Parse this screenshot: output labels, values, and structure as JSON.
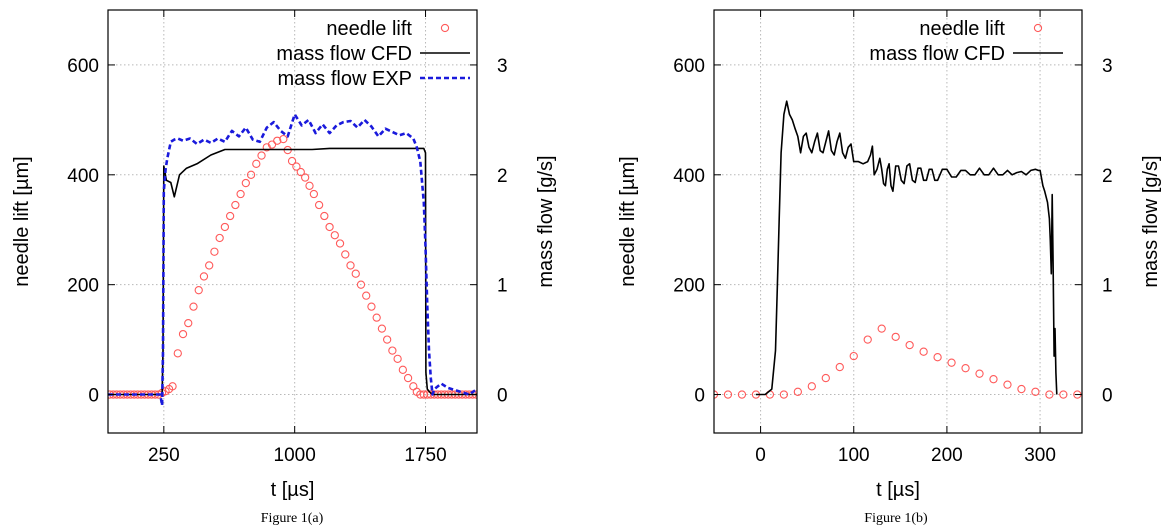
{
  "chart_data": [
    {
      "type": "line",
      "caption": "Figure 1(a)",
      "xlabel": "t [µs]",
      "ylabel": "needle lift [µm]",
      "y2label": "mass flow [g/s]",
      "xlim": [
        -70,
        2045
      ],
      "ylim": [
        -70,
        700
      ],
      "y2lim": [
        -0.35,
        3.5
      ],
      "xticks": [
        "250",
        "1000",
        "1750"
      ],
      "yticks": [
        "0",
        "200",
        "400",
        "600"
      ],
      "y2ticks": [
        "0",
        "1",
        "2",
        "3"
      ],
      "grid": true,
      "legend_position": "top-right",
      "series": [
        {
          "name": "needle lift",
          "axis": "left",
          "style": "circles",
          "color": "#ff5a5a",
          "x": [
            -60,
            -40,
            -20,
            0,
            20,
            40,
            60,
            80,
            100,
            120,
            140,
            160,
            180,
            200,
            220,
            240,
            260,
            280,
            300,
            330,
            360,
            390,
            420,
            450,
            480,
            510,
            540,
            570,
            600,
            630,
            660,
            690,
            720,
            750,
            780,
            810,
            840,
            870,
            900,
            935,
            960,
            985,
            1010,
            1035,
            1060,
            1085,
            1110,
            1140,
            1170,
            1200,
            1230,
            1260,
            1290,
            1320,
            1350,
            1380,
            1410,
            1440,
            1470,
            1500,
            1530,
            1560,
            1590,
            1620,
            1650,
            1680,
            1700,
            1720,
            1740,
            1760,
            1780,
            1800,
            1820,
            1840,
            1860,
            1880,
            1900,
            1920,
            1940,
            1960,
            1980,
            2000,
            2020,
            2040
          ],
          "y": [
            0,
            0,
            0,
            0,
            0,
            0,
            0,
            0,
            0,
            0,
            0,
            0,
            0,
            0,
            0,
            3,
            6,
            10,
            15,
            75,
            110,
            130,
            160,
            190,
            215,
            235,
            260,
            285,
            305,
            325,
            345,
            365,
            385,
            400,
            420,
            435,
            450,
            455,
            462,
            465,
            445,
            425,
            415,
            405,
            395,
            380,
            365,
            345,
            325,
            305,
            290,
            275,
            255,
            235,
            220,
            200,
            180,
            160,
            140,
            120,
            100,
            80,
            65,
            45,
            30,
            15,
            5,
            0,
            0,
            0,
            0,
            0,
            0,
            0,
            0,
            0,
            0,
            0,
            0,
            0,
            0,
            0,
            0,
            0
          ]
        },
        {
          "name": "mass flow CFD",
          "axis": "right",
          "style": "solid",
          "color": "#000000",
          "x": [
            -70,
            120,
            240,
            245,
            250,
            265,
            290,
            310,
            340,
            380,
            440,
            520,
            600,
            700,
            800,
            900,
            1000,
            1100,
            1200,
            1300,
            1400,
            1500,
            1600,
            1700,
            1740,
            1750,
            1752,
            1760,
            1775,
            1790,
            1810,
            1850,
            1900,
            2045
          ],
          "y": [
            0,
            0,
            0,
            0.4,
            2.08,
            1.95,
            1.93,
            1.8,
            2.0,
            2.06,
            2.1,
            2.18,
            2.23,
            2.23,
            2.23,
            2.23,
            2.23,
            2.23,
            2.24,
            2.24,
            2.24,
            2.24,
            2.24,
            2.24,
            2.24,
            2.2,
            0.2,
            0.05,
            0.02,
            0.0,
            0.0,
            0.0,
            0.0,
            0.0
          ]
        },
        {
          "name": "mass flow EXP",
          "axis": "right",
          "style": "dashed",
          "color": "#1a1adc",
          "x": [
            -70,
            150,
            230,
            240,
            245,
            250,
            260,
            270,
            290,
            310,
            330,
            360,
            400,
            440,
            480,
            520,
            560,
            600,
            640,
            680,
            720,
            760,
            800,
            840,
            880,
            920,
            960,
            1000,
            1040,
            1080,
            1120,
            1160,
            1200,
            1240,
            1280,
            1320,
            1360,
            1400,
            1440,
            1480,
            1520,
            1560,
            1600,
            1640,
            1680,
            1700,
            1720,
            1740,
            1750,
            1760,
            1770,
            1780,
            1790,
            1800,
            1840,
            1880,
            1920,
            1960,
            2000,
            2045
          ],
          "y": [
            0,
            0,
            0,
            -0.1,
            0.4,
            1.85,
            2.05,
            2.15,
            2.3,
            2.32,
            2.33,
            2.31,
            2.33,
            2.28,
            2.32,
            2.29,
            2.33,
            2.3,
            2.4,
            2.35,
            2.43,
            2.32,
            2.3,
            2.43,
            2.48,
            2.4,
            2.35,
            2.55,
            2.45,
            2.5,
            2.38,
            2.46,
            2.38,
            2.45,
            2.48,
            2.49,
            2.43,
            2.5,
            2.44,
            2.35,
            2.42,
            2.39,
            2.36,
            2.38,
            2.33,
            2.25,
            2.12,
            1.75,
            1.35,
            0.8,
            0.4,
            0.15,
            0.0,
            0.05,
            0.1,
            0.06,
            0.04,
            0.02,
            0.0,
            0.05
          ]
        }
      ]
    },
    {
      "type": "line",
      "caption": "Figure 1(b)",
      "xlabel": "t [µs]",
      "ylabel": "needle lift [µm]",
      "y2label": "mass flow [g/s]",
      "xlim": [
        -50,
        345
      ],
      "ylim": [
        -70,
        700
      ],
      "y2lim": [
        -0.35,
        3.5
      ],
      "xticks": [
        "0",
        "100",
        "200",
        "300"
      ],
      "yticks": [
        "0",
        "200",
        "400",
        "600"
      ],
      "y2ticks": [
        "0",
        "1",
        "2",
        "3"
      ],
      "grid": true,
      "legend_position": "top-right",
      "series": [
        {
          "name": "needle lift",
          "axis": "left",
          "style": "circles",
          "color": "#ff5a5a",
          "x": [
            -50,
            -35,
            -20,
            -5,
            10,
            25,
            40,
            55,
            70,
            85,
            100,
            115,
            130,
            145,
            160,
            175,
            190,
            205,
            220,
            235,
            250,
            265,
            280,
            295,
            310,
            325,
            340
          ],
          "y": [
            0,
            0,
            0,
            0,
            0,
            0,
            5,
            15,
            30,
            50,
            70,
            100,
            120,
            105,
            90,
            78,
            68,
            58,
            48,
            38,
            28,
            18,
            10,
            5,
            0,
            0,
            0
          ]
        },
        {
          "name": "mass flow CFD",
          "axis": "right",
          "style": "solid",
          "color": "#000000",
          "x": [
            -5,
            5,
            12,
            16,
            18,
            20,
            22,
            25,
            28,
            31,
            34,
            37,
            40,
            43,
            46,
            49,
            52,
            55,
            58,
            61,
            64,
            67,
            70,
            73,
            76,
            79,
            82,
            85,
            88,
            91,
            94,
            97,
            100,
            105,
            110,
            115,
            118,
            120,
            122,
            125,
            128,
            130,
            132,
            134,
            136,
            138,
            140,
            142,
            145,
            148,
            151,
            154,
            157,
            160,
            163,
            166,
            169,
            172,
            175,
            178,
            181,
            184,
            187,
            190,
            195,
            200,
            205,
            210,
            215,
            220,
            225,
            230,
            235,
            240,
            245,
            250,
            255,
            260,
            265,
            270,
            275,
            280,
            285,
            290,
            295,
            298,
            300,
            303,
            305,
            308,
            310,
            311,
            312,
            313,
            314,
            315,
            316,
            317,
            318
          ],
          "y": [
            0,
            0,
            0.05,
            0.4,
            1.0,
            1.6,
            2.2,
            2.55,
            2.67,
            2.55,
            2.5,
            2.42,
            2.35,
            2.2,
            2.35,
            2.38,
            2.25,
            2.2,
            2.3,
            2.38,
            2.22,
            2.2,
            2.3,
            2.4,
            2.22,
            2.18,
            2.3,
            2.38,
            2.2,
            2.15,
            2.25,
            2.28,
            2.12,
            2.12,
            2.1,
            2.12,
            2.18,
            2.26,
            2.0,
            2.05,
            2.15,
            2.05,
            1.92,
            1.9,
            2.05,
            2.1,
            1.9,
            1.85,
            2.08,
            2.08,
            1.95,
            1.92,
            2.08,
            2.1,
            1.95,
            1.93,
            2.06,
            2.06,
            1.95,
            1.95,
            2.05,
            2.05,
            1.95,
            1.95,
            2.05,
            2.05,
            1.98,
            1.98,
            2.04,
            2.04,
            2.0,
            2.0,
            2.06,
            2.0,
            2.0,
            2.06,
            2.0,
            2.0,
            2.04,
            2.0,
            2.02,
            2.03,
            2.0,
            2.04,
            2.05,
            2.04,
            2.04,
            1.9,
            1.85,
            1.75,
            1.6,
            1.4,
            1.1,
            1.82,
            1.2,
            0.35,
            0.6,
            0.2,
            0.0
          ]
        }
      ]
    }
  ]
}
